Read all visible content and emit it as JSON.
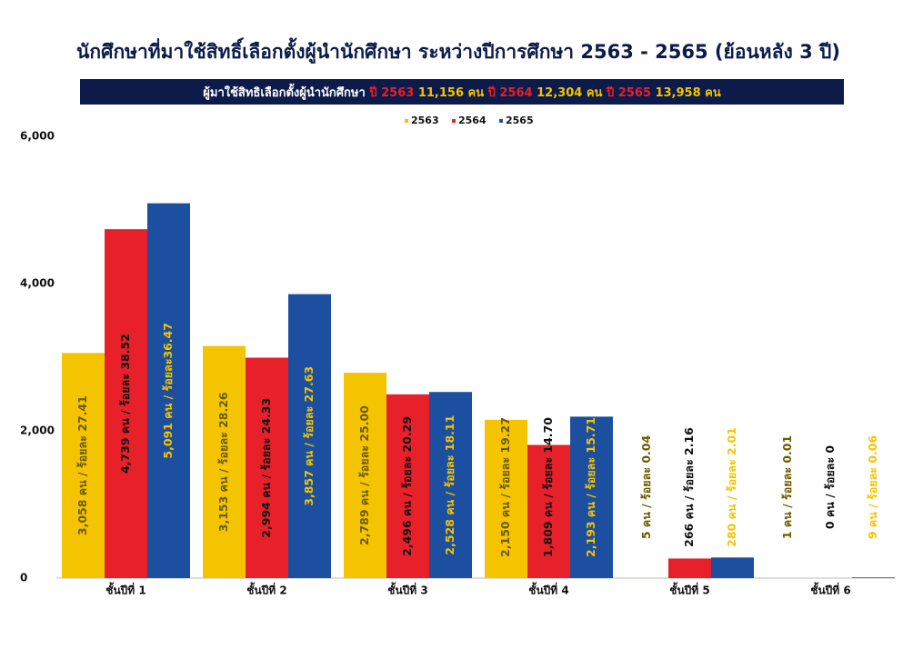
{
  "chart_data": {
    "type": "bar",
    "title": "นักศึกษาที่มาใช้สิทธิ์เลือกตั้งผู้นำนักศึกษา ระหว่างปีการศึกษา 2563 - 2565 (ย้อนหลัง 3 ปี)",
    "subtitle": [
      {
        "text": "ผู้มาใช้สิทธิเลือกตั้งผู้นำนักศึกษา ",
        "color": "#ffffff"
      },
      {
        "text": "ปี 2563 ",
        "color": "#e8202a"
      },
      {
        "text": "11,156 คน  ",
        "color": "#f5c400"
      },
      {
        "text": "ปี 2564 ",
        "color": "#e8202a"
      },
      {
        "text": "12,304 คน   ",
        "color": "#f5c400"
      },
      {
        "text": "ปี 2565  ",
        "color": "#e8202a"
      },
      {
        "text": "13,958 คน",
        "color": "#f5c400"
      }
    ],
    "categories": [
      "ชั้นปีที่ 1",
      "ชั้นปีที่ 2",
      "ชั้นปีที่ 3",
      "ชั้นปีที่ 4",
      "ชั้นปีที่ 5",
      "ชั้นปีที่ 6"
    ],
    "series": [
      {
        "name": "2563",
        "color": "#f5c400",
        "label_color": "#6b5a00",
        "values": [
          3058,
          3153,
          2789,
          2150,
          5,
          1
        ],
        "value_labels": [
          "3,058 คน / ร้อยละ 27.41",
          "3,153 คน / ร้อยละ 28.26",
          "2,789 คน / ร้อยละ 25.00",
          "2,150 คน / ร้อยละ 19.27",
          "5 คน / ร้อยละ 0.04",
          "1 คน / ร้อยละ 0.01"
        ]
      },
      {
        "name": "2564",
        "color": "#e8202a",
        "label_color": "#111111",
        "values": [
          4739,
          2994,
          2496,
          1809,
          266,
          0
        ],
        "value_labels": [
          "4,739 คน / ร้อยละ 38.52",
          "2,994 คน / ร้อยละ 24.33",
          "2,496 คน / ร้อยละ 20.29",
          "1,809 คน / ร้อยละ 14.70",
          "266 คน / ร้อยละ 2.16",
          "0 คน / ร้อยละ 0"
        ]
      },
      {
        "name": "2565",
        "color": "#1c4fa0",
        "label_color": "#f5c400",
        "values": [
          5091,
          3857,
          2528,
          2193,
          280,
          9
        ],
        "value_labels": [
          "5,091 คน / ร้อยละ36.47",
          "3,857 คน / ร้อยละ 27.63",
          "2,528 คน / ร้อยละ 18.11",
          "2,193 คน / ร้อยละ 15.71",
          "280 คน / ร้อยละ 2.01",
          "9 คน / ร้อยละ 0.06"
        ]
      }
    ],
    "ylim": [
      0,
      6000
    ],
    "yticks": [
      0,
      {
        "value": 2000,
        "label": "2,000"
      },
      {
        "value": 4000,
        "label": "4,000"
      },
      {
        "value": 6000,
        "label": "6,000"
      }
    ],
    "legend": "top"
  }
}
